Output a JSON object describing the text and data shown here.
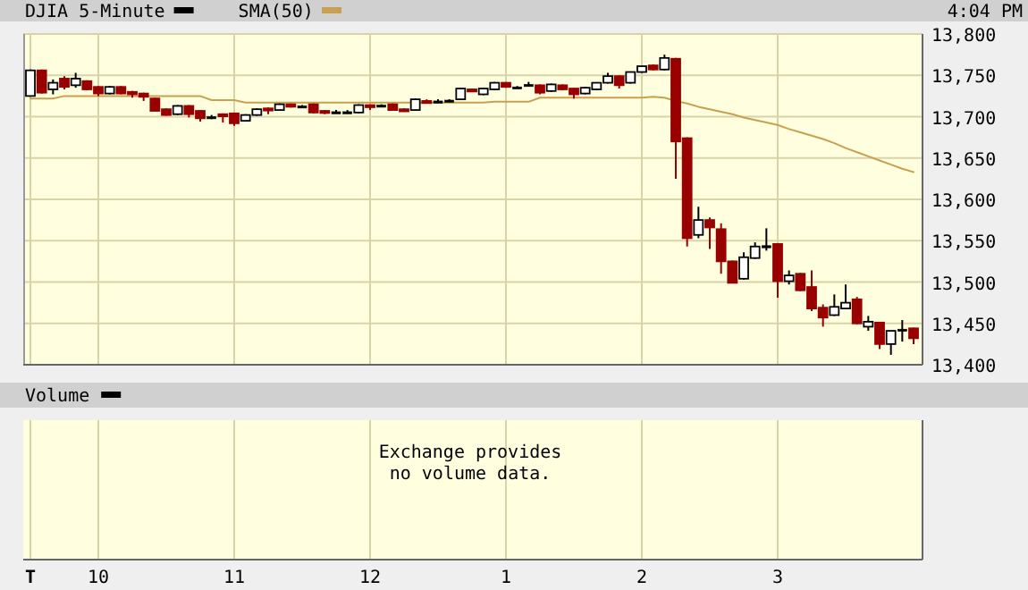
{
  "chart_data": [
    {
      "type": "candlestick",
      "subtitle": "4:04 PM",
      "ylim": [
        13400,
        13800
      ],
      "yticks": [
        {
          "value": 13400,
          "label": "13,400"
        },
        {
          "value": 13450,
          "label": "13,450"
        },
        {
          "value": 13500,
          "label": "13,500"
        },
        {
          "value": 13550,
          "label": "13,550"
        },
        {
          "value": 13600,
          "label": "13,600"
        },
        {
          "value": 13650,
          "label": "13,650"
        },
        {
          "value": 13700,
          "label": "13,700"
        },
        {
          "value": 13750,
          "label": "13,750"
        },
        {
          "value": 13800,
          "label": "13,800"
        }
      ],
      "grid": true,
      "legend": "top left",
      "tick_labels": "y",
      "categories": [
        "T",
        null,
        null,
        null,
        null,
        null,
        "10",
        null,
        null,
        null,
        null,
        null,
        null,
        null,
        null,
        null,
        null,
        null,
        "11",
        null,
        null,
        null,
        null,
        null,
        null,
        null,
        null,
        null,
        null,
        null,
        "12",
        null,
        null,
        null,
        null,
        null,
        null,
        null,
        null,
        null,
        null,
        null,
        "1",
        null,
        null,
        null,
        null,
        null,
        null,
        null,
        null,
        null,
        null,
        null,
        "2",
        null,
        null,
        null,
        null,
        null,
        null,
        null,
        null,
        null,
        null,
        null,
        "3",
        null,
        null,
        null,
        null,
        null,
        null,
        null,
        null,
        null,
        null,
        null,
        null
      ],
      "series": [
        {
          "name": "DJIA 5-Minute",
          "type": "candlestick",
          "color": "#000000",
          "colors": [
            "#000000",
            "#990000",
            "#000000",
            "#990000",
            "#000000",
            "#990000",
            "#990000",
            "#000000",
            "#990000",
            "#990000",
            "#990000",
            "#990000",
            "#990000",
            "#000000",
            "#990000",
            "#990000",
            "#000000",
            "#990000",
            "#990000",
            "#000000",
            "#000000",
            "#990000",
            "#000000",
            "#990000",
            "#000000",
            "#990000",
            "#990000",
            "#000000",
            "#000000",
            "#000000",
            "#990000",
            "#000000",
            "#990000",
            "#990000",
            "#000000",
            "#990000",
            "#000000",
            "#000000",
            "#000000",
            "#990000",
            "#000000",
            "#000000",
            "#990000",
            "#000000",
            "#000000",
            "#990000",
            "#000000",
            "#990000",
            "#990000",
            "#000000",
            "#000000",
            "#000000",
            "#990000",
            "#000000",
            "#000000",
            "#990000",
            "#000000",
            "#990000",
            "#990000",
            "#000000",
            "#990000",
            "#990000",
            "#990000",
            "#000000",
            "#000000",
            "#000000",
            "#990000",
            "#000000",
            "#990000",
            "#990000",
            "#990000",
            "#000000",
            "#000000",
            "#990000",
            "#000000",
            "#990000",
            "#000000",
            "#000000",
            "#990000"
          ],
          "ohlc": [
            [
              13725,
              13757,
              13724,
              13756
            ],
            [
              13756,
              13757,
              13728,
              13729
            ],
            [
              13733,
              13745,
              13727,
              13741
            ],
            [
              13746,
              13749,
              13733,
              13736
            ],
            [
              13738,
              13753,
              13735,
              13746
            ],
            [
              13743,
              13744,
              13732,
              13733
            ],
            [
              13736,
              13737,
              13725,
              13728
            ],
            [
              13728,
              13737,
              13727,
              13736
            ],
            [
              13736,
              13737,
              13727,
              13728
            ],
            [
              13730,
              13731,
              13723,
              13727
            ],
            [
              13728,
              13729,
              13719,
              13724
            ],
            [
              13722,
              13723,
              13706,
              13707
            ],
            [
              13709,
              13710,
              13701,
              13702
            ],
            [
              13703,
              13714,
              13702,
              13713
            ],
            [
              13713,
              13714,
              13699,
              13703
            ],
            [
              13707,
              13708,
              13694,
              13698
            ],
            [
              13700,
              13702,
              13697,
              13700
            ],
            [
              13703,
              13704,
              13693,
              13701
            ],
            [
              13704,
              13705,
              13689,
              13692
            ],
            [
              13695,
              13703,
              13694,
              13702
            ],
            [
              13702,
              13710,
              13701,
              13709
            ],
            [
              13710,
              13711,
              13703,
              13709
            ],
            [
              13708,
              13716,
              13707,
              13715
            ],
            [
              13715,
              13716,
              13711,
              13712
            ],
            [
              13713,
              13714,
              13712,
              13713
            ],
            [
              13715,
              13716,
              13704,
              13705
            ],
            [
              13707,
              13708,
              13703,
              13706
            ],
            [
              13706,
              13708,
              13704,
              13706
            ],
            [
              13706,
              13708,
              13704,
              13706
            ],
            [
              13705,
              13715,
              13704,
              13714
            ],
            [
              13714,
              13715,
              13708,
              13713
            ],
            [
              13714,
              13715,
              13713,
              13714
            ],
            [
              13715,
              13716,
              13707,
              13708
            ],
            [
              13709,
              13710,
              13706,
              13708
            ],
            [
              13708,
              13722,
              13707,
              13721
            ],
            [
              13719,
              13721,
              13717,
              13718
            ],
            [
              13719,
              13721,
              13717,
              13719
            ],
            [
              13720,
              13721,
              13719,
              13720
            ],
            [
              13721,
              13735,
              13720,
              13734
            ],
            [
              13733,
              13734,
              13730,
              13731
            ],
            [
              13727,
              13735,
              13726,
              13734
            ],
            [
              13733,
              13742,
              13732,
              13741
            ],
            [
              13741,
              13742,
              13735,
              13736
            ],
            [
              13736,
              13737,
              13735,
              13736
            ],
            [
              13739,
              13742,
              13737,
              13739
            ],
            [
              13738,
              13739,
              13727,
              13729
            ],
            [
              13731,
              13740,
              13730,
              13739
            ],
            [
              13738,
              13739,
              13732,
              13733
            ],
            [
              13734,
              13735,
              13722,
              13727
            ],
            [
              13728,
              13736,
              13727,
              13735
            ],
            [
              13733,
              13741,
              13732,
              13741
            ],
            [
              13741,
              13753,
              13740,
              13749
            ],
            [
              13749,
              13750,
              13734,
              13738
            ],
            [
              13741,
              13754,
              13740,
              13754
            ],
            [
              13754,
              13761,
              13753,
              13761
            ],
            [
              13762,
              13763,
              13756,
              13757
            ],
            [
              13757,
              13775,
              13756,
              13771
            ],
            [
              13770,
              13771,
              13625,
              13670
            ],
            [
              13674,
              13675,
              13543,
              13553
            ],
            [
              13557,
              13591,
              13553,
              13575
            ],
            [
              13575,
              13578,
              13540,
              13566
            ],
            [
              13564,
              13571,
              13510,
              13525
            ],
            [
              13525,
              13526,
              13499,
              13499
            ],
            [
              13504,
              13536,
              13503,
              13530
            ],
            [
              13529,
              13548,
              13528,
              13543
            ],
            [
              13544,
              13565,
              13538,
              13544
            ],
            [
              13546,
              13547,
              13481,
              13501
            ],
            [
              13501,
              13514,
              13497,
              13508
            ],
            [
              13510,
              13511,
              13489,
              13490
            ],
            [
              13494,
              13514,
              13465,
              13468
            ],
            [
              13469,
              13473,
              13446,
              13457
            ],
            [
              13460,
              13485,
              13459,
              13470
            ],
            [
              13468,
              13497,
              13467,
              13475
            ],
            [
              13479,
              13482,
              13449,
              13450
            ],
            [
              13446,
              13459,
              13441,
              13452
            ],
            [
              13451,
              13452,
              13419,
              13425
            ],
            [
              13425,
              13441,
              13412,
              13441
            ],
            [
              13443,
              13454,
              13428,
              13443
            ],
            [
              13444,
              13445,
              13425,
              13432
            ]
          ]
        },
        {
          "name": "SMA(50)",
          "type": "line",
          "color": "#c8a050",
          "values": [
            13722,
            13722,
            13722,
            13725,
            13725,
            13725,
            13725,
            13725,
            13725,
            13725,
            13725,
            13725,
            13725,
            13725,
            13725,
            13725,
            13720,
            13720,
            13720,
            13717,
            13717,
            13717,
            13717,
            13717,
            13717,
            13717,
            13717,
            13717,
            13717,
            13717,
            13717,
            13717,
            13717,
            13717,
            13717,
            13717,
            13717,
            13717,
            13717,
            13717,
            13717,
            13718,
            13718,
            13718,
            13718,
            13723,
            13723,
            13723,
            13723,
            13723,
            13723,
            13723,
            13723,
            13723,
            13723,
            13724,
            13723,
            13719,
            13716,
            13712,
            13709,
            13706,
            13703,
            13699,
            13696,
            13693,
            13690,
            13685,
            13681,
            13677,
            13673,
            13668,
            13662,
            13657,
            13652,
            13647,
            13642,
            13637,
            13633
          ]
        }
      ]
    },
    {
      "type": "other",
      "title": "Volume",
      "annotations": [
        "Exchange provides no volume data."
      ]
    }
  ]
}
